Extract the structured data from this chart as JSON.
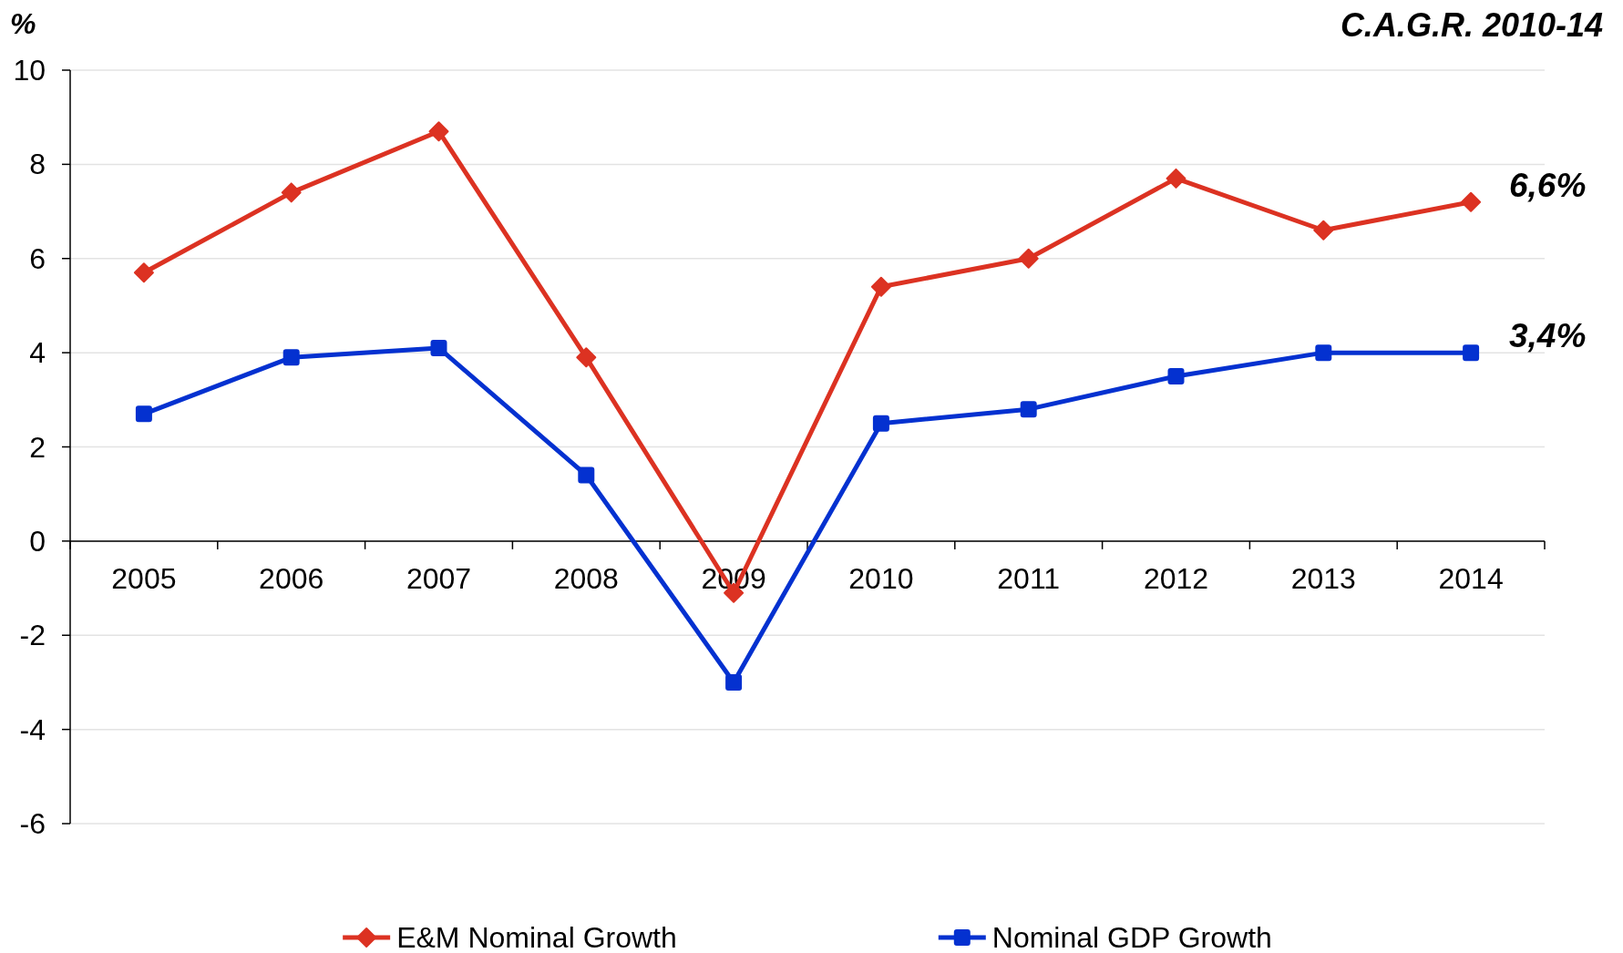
{
  "chart_data": {
    "type": "line",
    "title": "C.A.G.R. 2010-14",
    "ylabel": "%",
    "categories": [
      "2005",
      "2006",
      "2007",
      "2008",
      "2009",
      "2010",
      "2011",
      "2012",
      "2013",
      "2014"
    ],
    "series": [
      {
        "name": "E&M Nominal Growth",
        "color": "#dc3222",
        "marker": "diamond",
        "values": [
          5.7,
          7.4,
          8.7,
          3.9,
          -1.1,
          5.4,
          6.0,
          7.7,
          6.6,
          7.2
        ]
      },
      {
        "name": "Nominal GDP Growth",
        "color": "#0431d0",
        "marker": "square",
        "values": [
          2.7,
          3.9,
          4.1,
          1.4,
          -3.0,
          2.5,
          2.8,
          3.5,
          4.0,
          4.0
        ]
      }
    ],
    "ylim": [
      -6,
      10
    ],
    "yticks": [
      -6,
      -4,
      -2,
      0,
      2,
      4,
      6,
      8,
      10
    ],
    "grid": "y",
    "legend": "bottom",
    "annotations": [
      "6,6%",
      "3,4%"
    ]
  }
}
